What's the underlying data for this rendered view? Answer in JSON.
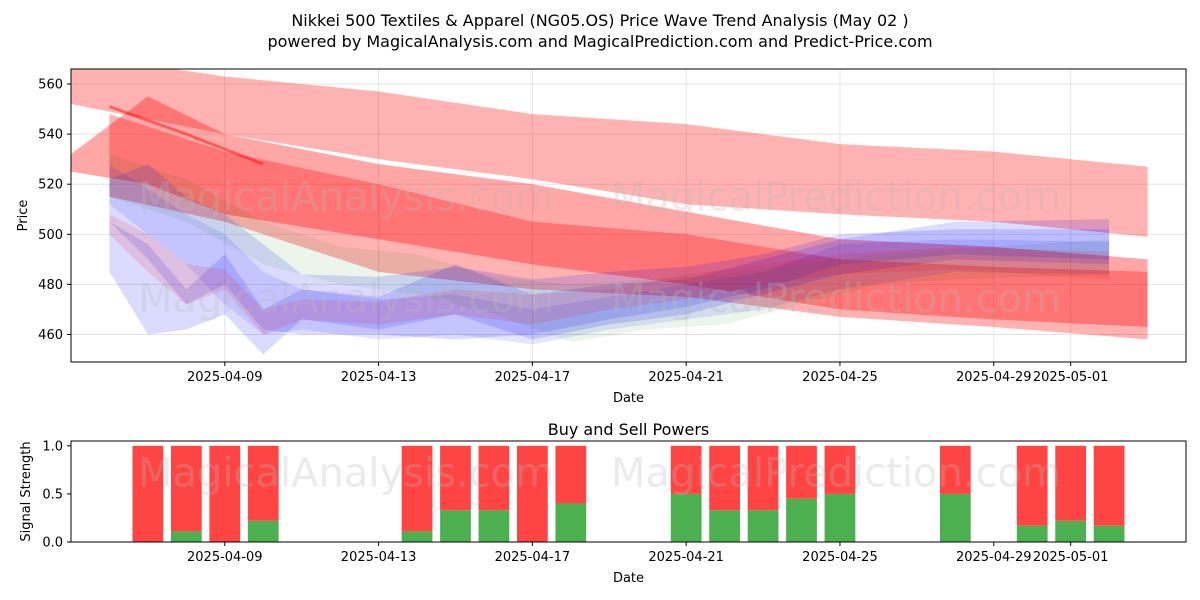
{
  "title_line1": "Nikkei 500 Textiles & Apparel (NG05.OS) Price Wave Trend Analysis (May 02 )",
  "title_line2": "powered by MagicalAnalysis.com and MagicalPrediction.com and Predict-Price.com",
  "watermarks": [
    "MagicalAnalysis.com",
    "MagicalPrediction.com"
  ],
  "colors": {
    "red": "#ff0000",
    "blue": "#0000ff",
    "green": "#008000",
    "buy": "#4caf50",
    "sell": "#ff4444"
  },
  "chart_data": [
    {
      "type": "area",
      "xlabel": "Date",
      "ylabel": "Price",
      "xlim": [
        "2025-04-05",
        "2025-05-04"
      ],
      "ylim": [
        449,
        566
      ],
      "yticks": [
        460,
        480,
        500,
        520,
        540,
        560
      ],
      "xticks": [
        "2025-04-09",
        "2025-04-13",
        "2025-04-17",
        "2025-04-21",
        "2025-04-25",
        "2025-04-29",
        "2025-05-01"
      ],
      "grid": true,
      "bands": [
        {
          "color": "red",
          "opacity": 0.3,
          "x": [
            "2025-04-05",
            "2025-04-09",
            "2025-04-13",
            "2025-04-17",
            "2025-04-21",
            "2025-04-25",
            "2025-04-29",
            "2025-05-03"
          ],
          "upper": [
            572,
            563,
            557,
            548,
            544,
            536,
            533,
            527
          ],
          "lower": [
            552,
            540,
            530,
            522,
            512,
            508,
            505,
            499
          ]
        },
        {
          "color": "red",
          "opacity": 0.35,
          "x": [
            "2025-04-05",
            "2025-04-07",
            "2025-04-09",
            "2025-04-13",
            "2025-04-17",
            "2025-04-21",
            "2025-04-25",
            "2025-04-29",
            "2025-05-03"
          ],
          "upper": [
            532,
            555,
            540,
            528,
            520,
            509,
            498,
            495,
            490
          ],
          "lower": [
            525,
            520,
            508,
            498,
            488,
            480,
            470,
            466,
            463
          ]
        },
        {
          "color": "red",
          "opacity": 0.3,
          "x": [
            "2025-04-06",
            "2025-04-09",
            "2025-04-13",
            "2025-04-17",
            "2025-04-21",
            "2025-04-25",
            "2025-04-29",
            "2025-05-03"
          ],
          "upper": [
            548,
            533,
            520,
            505,
            500,
            490,
            487,
            485
          ],
          "lower": [
            515,
            505,
            485,
            478,
            475,
            467,
            463,
            458
          ]
        },
        {
          "color": "blue",
          "opacity": 0.14,
          "x": [
            "2025-04-06",
            "2025-04-07",
            "2025-04-08",
            "2025-04-09",
            "2025-04-10",
            "2025-04-11",
            "2025-04-13",
            "2025-04-15",
            "2025-04-17",
            "2025-04-19",
            "2025-04-21",
            "2025-04-23",
            "2025-04-25",
            "2025-04-28",
            "2025-05-02"
          ],
          "upper": [
            522,
            528,
            515,
            508,
            496,
            484,
            483,
            487,
            482,
            485,
            487,
            492,
            500,
            502,
            502
          ],
          "lower": [
            505,
            490,
            472,
            480,
            462,
            460,
            460,
            458,
            460,
            466,
            471,
            478,
            488,
            492,
            490
          ]
        },
        {
          "color": "blue",
          "opacity": 0.14,
          "x": [
            "2025-04-06",
            "2025-04-07",
            "2025-04-08",
            "2025-04-09",
            "2025-04-10",
            "2025-04-11",
            "2025-04-13",
            "2025-04-15",
            "2025-04-17",
            "2025-04-19",
            "2025-04-21",
            "2025-04-23",
            "2025-04-25",
            "2025-04-28",
            "2025-05-02"
          ],
          "upper": [
            505,
            496,
            478,
            492,
            470,
            478,
            475,
            488,
            476,
            480,
            482,
            490,
            498,
            505,
            506
          ],
          "lower": [
            485,
            460,
            462,
            468,
            452,
            466,
            462,
            468,
            458,
            464,
            468,
            476,
            484,
            490,
            488
          ]
        },
        {
          "color": "blue",
          "opacity": 0.1,
          "x": [
            "2025-04-06",
            "2025-04-07",
            "2025-04-08",
            "2025-04-09",
            "2025-04-10",
            "2025-04-11",
            "2025-04-13",
            "2025-04-15",
            "2025-04-17",
            "2025-04-19",
            "2025-04-21",
            "2025-04-23",
            "2025-04-25",
            "2025-04-28",
            "2025-05-02"
          ],
          "upper": [
            528,
            518,
            508,
            500,
            485,
            478,
            474,
            476,
            470,
            475,
            480,
            485,
            496,
            498,
            497
          ],
          "lower": [
            512,
            500,
            488,
            472,
            460,
            462,
            458,
            460,
            456,
            462,
            466,
            470,
            478,
            485,
            484
          ]
        },
        {
          "color": "green",
          "opacity": 0.08,
          "x": [
            "2025-04-06",
            "2025-04-08",
            "2025-04-10",
            "2025-04-12",
            "2025-04-14",
            "2025-04-16",
            "2025-04-18",
            "2025-04-20",
            "2025-04-22",
            "2025-04-24",
            "2025-04-26",
            "2025-04-28",
            "2025-05-02"
          ],
          "upper": [
            532,
            522,
            505,
            495,
            492,
            483,
            480,
            482,
            484,
            488,
            492,
            494,
            498
          ],
          "lower": [
            515,
            505,
            488,
            480,
            476,
            468,
            457,
            462,
            464,
            472,
            480,
            482,
            484
          ]
        },
        {
          "color": "red",
          "opacity": 0.12,
          "x": [
            "2025-04-06",
            "2025-04-07",
            "2025-04-08",
            "2025-04-09",
            "2025-04-10",
            "2025-04-11",
            "2025-04-13",
            "2025-04-15",
            "2025-04-17",
            "2025-04-19",
            "2025-04-21",
            "2025-04-23",
            "2025-04-25",
            "2025-04-28",
            "2025-05-02"
          ],
          "upper": [
            508,
            500,
            488,
            486,
            470,
            474,
            473,
            478,
            476,
            478,
            484,
            488,
            492,
            495,
            493
          ],
          "lower": [
            500,
            485,
            472,
            478,
            460,
            466,
            464,
            468,
            464,
            470,
            474,
            480,
            484,
            486,
            482
          ]
        }
      ],
      "lines": [
        {
          "color": "red",
          "x": [
            "2025-04-06",
            "2025-04-08",
            "2025-04-10"
          ],
          "y": [
            551,
            540,
            528
          ]
        }
      ]
    },
    {
      "type": "bar",
      "title": "Buy and Sell Powers",
      "xlabel": "Date",
      "ylabel": "Signal Strength",
      "xlim": [
        "2025-04-05",
        "2025-05-04"
      ],
      "ylim": [
        0,
        1.05
      ],
      "yticks": [
        0.0,
        0.5,
        1.0
      ],
      "xticks": [
        "2025-04-09",
        "2025-04-13",
        "2025-04-17",
        "2025-04-21",
        "2025-04-25",
        "2025-04-29",
        "2025-05-01"
      ],
      "dates": [
        "2025-04-07",
        "2025-04-08",
        "2025-04-09",
        "2025-04-10",
        "2025-04-14",
        "2025-04-15",
        "2025-04-16",
        "2025-04-17",
        "2025-04-18",
        "2025-04-21",
        "2025-04-22",
        "2025-04-23",
        "2025-04-24",
        "2025-04-25",
        "2025-04-28",
        "2025-04-30",
        "2025-05-01",
        "2025-05-02"
      ],
      "series": [
        {
          "name": "Buy",
          "values": [
            0.0,
            0.11,
            0.0,
            0.22,
            0.11,
            0.33,
            0.33,
            0.0,
            0.4,
            0.5,
            0.33,
            0.33,
            0.45,
            0.5,
            0.5,
            0.17,
            0.22,
            0.17
          ]
        },
        {
          "name": "Sell",
          "values": [
            1.0,
            0.89,
            1.0,
            0.78,
            0.89,
            0.67,
            0.67,
            1.0,
            0.6,
            0.5,
            0.67,
            0.67,
            0.55,
            0.5,
            0.5,
            0.83,
            0.78,
            0.83
          ]
        }
      ]
    }
  ]
}
